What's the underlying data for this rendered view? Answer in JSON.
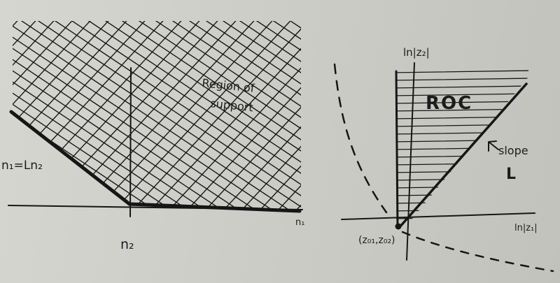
{
  "left_panel": {
    "region_label_line1": "Region of",
    "region_label_line2": "support",
    "boundary_label": "n₁=Ln₂",
    "n2_tick_label": "n₂",
    "n1_axis_label": "n₁"
  },
  "right_panel": {
    "y_axis_label": "ln|z₂|",
    "x_axis_label": "ln|z₁|",
    "roc_label": "ROC",
    "slope_label_line1": "slope",
    "slope_label_line2": "L",
    "point_label": "(z₀₁,z₀₂)"
  },
  "colors": {
    "ink": "#161616",
    "paper": "#d2d2cd"
  }
}
